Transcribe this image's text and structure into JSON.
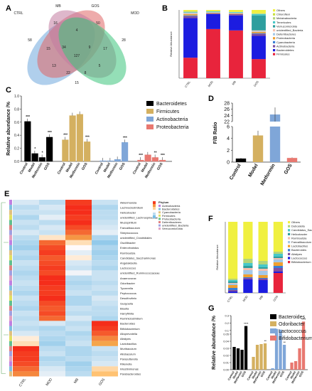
{
  "panels": {
    "A": "A",
    "B": "B",
    "C": "C",
    "D": "D",
    "E": "E",
    "F": "F",
    "G": "G"
  },
  "chart_data": [
    {
      "panel": "A",
      "type": "venn",
      "sets": [
        {
          "name": "CTRL",
          "color": "#6fa8dc"
        },
        {
          "name": "MB",
          "color": "#e06666"
        },
        {
          "name": "GOS",
          "color": "#c27ba0"
        },
        {
          "name": "MOD",
          "color": "#3cc47c"
        }
      ],
      "region_values": [
        "58",
        "16",
        "50",
        "28",
        "4",
        "15",
        "17",
        "34",
        "9",
        "127",
        "13",
        "5",
        "22",
        "8",
        "15"
      ]
    },
    {
      "panel": "B",
      "type": "bar",
      "stacked": true,
      "categories": [
        "CTRL",
        "MOD",
        "MB",
        "GOS"
      ],
      "ylabel": "Relative Abundance",
      "ylim": [
        0,
        1
      ],
      "series": [
        {
          "name": "Firmicutes",
          "color": "#e8243c",
          "values": [
            0.3,
            0.72,
            0.7,
            0.28
          ]
        },
        {
          "name": "Bacteroidetes",
          "color": "#1c1ce0",
          "values": [
            0.58,
            0.22,
            0.22,
            0.34
          ]
        },
        {
          "name": "Actinobacteria",
          "color": "#7f4fa0",
          "values": [
            0.03,
            0.01,
            0.02,
            0.03
          ]
        },
        {
          "name": "Cyanobacteria",
          "color": "#3a7fd6",
          "values": [
            0.01,
            0.0,
            0.0,
            0.01
          ]
        },
        {
          "name": "Proteobacteria",
          "color": "#f0a030",
          "values": [
            0.02,
            0.01,
            0.01,
            0.02
          ]
        },
        {
          "name": "Deferribacteres",
          "color": "#a4c8e8",
          "values": [
            0.01,
            0.01,
            0.01,
            0.01
          ]
        },
        {
          "name": "unidentified_Bacteria",
          "color": "#f6c0b0",
          "values": [
            0.01,
            0.0,
            0.0,
            0.01
          ]
        },
        {
          "name": "Verrucomicrobia",
          "color": "#2e9e9e",
          "values": [
            0.0,
            0.0,
            0.0,
            0.22
          ]
        },
        {
          "name": "Tenericutes",
          "color": "#48c8c8",
          "values": [
            0.01,
            0.01,
            0.01,
            0.02
          ]
        },
        {
          "name": "Melainabacteria",
          "color": "#b4d47a",
          "values": [
            0.01,
            0.0,
            0.0,
            0.01
          ]
        },
        {
          "name": "Chloroflexi",
          "color": "#c8e040",
          "values": [
            0.0,
            0.0,
            0.0,
            0.0
          ]
        },
        {
          "name": "Others",
          "color": "#f0f040",
          "values": [
            0.02,
            0.02,
            0.03,
            0.05
          ]
        }
      ]
    },
    {
      "panel": "C",
      "type": "bar",
      "ylabel": "Relative abundance /%",
      "ylim": [
        0,
        1
      ],
      "yticks": [
        "0.0",
        "0.2",
        "0.4",
        "0.6",
        "0.8",
        "1.0"
      ],
      "groups": [
        "Control",
        "Model",
        "Metformin",
        "GOS"
      ],
      "series": [
        {
          "name": "Bacteroidetes",
          "color": "#000000",
          "values": [
            0.61,
            0.12,
            0.06,
            0.37
          ],
          "sig": [
            "***",
            "*",
            "*",
            "***"
          ]
        },
        {
          "name": "Firmicutes",
          "color": "#d4b060",
          "values": [
            0.33,
            0.7,
            0.72,
            0.3
          ],
          "sig": [
            "***",
            "",
            "",
            "***"
          ]
        },
        {
          "name": "Actinobacteria",
          "color": "#7fa6d8",
          "values": [
            0.01,
            0.01,
            0.03,
            0.29
          ],
          "sig": [
            "",
            "",
            "",
            "***"
          ]
        },
        {
          "name": "Proteobacteria",
          "color": "#e87870",
          "values": [
            0.02,
            0.1,
            0.06,
            0.02
          ],
          "sig": [
            "***",
            "",
            "**",
            "***"
          ]
        }
      ]
    },
    {
      "panel": "D",
      "type": "bar",
      "ylabel": "F/B Ratio",
      "yticks_lower": [
        "0",
        "2",
        "4",
        "6"
      ],
      "yticks_upper": [
        "22",
        "24",
        "26",
        "28"
      ],
      "categories": [
        "Control",
        "Model",
        "Metformin",
        "GOS"
      ],
      "values": [
        0.6,
        4.5,
        24.3,
        0.7
      ],
      "errors": [
        0.1,
        0.8,
        2.3,
        0.1
      ],
      "colors": [
        "#000000",
        "#d4b060",
        "#7fa6d8",
        "#e87870"
      ]
    },
    {
      "panel": "E",
      "type": "heatmap",
      "columns": [
        "CTRL",
        "MOD",
        "MB",
        "GOS"
      ],
      "rows": [
        "Akkermansia",
        "Lachnoclostridium",
        "Helicobacter",
        "unidentified_Lachnospiraceae",
        "Mucispirillum",
        "Faecalibaculum",
        "Streptococcus",
        "unidentified_Clostridiales",
        "Oscillibacter",
        "Enterorhabdus",
        "Romboutsia",
        "Candidatus_Saccharimonas",
        "Angelakisella",
        "Lactococcus",
        "unidentified_Ruminococcaceae",
        "Anaerovorax",
        "Odoribacter",
        "Tyzzerella",
        "Peptococcus",
        "Desulfovibrio",
        "Guayoella",
        "Blautia",
        "Harryflintia",
        "Ruminiclostridium",
        "Bacteroides",
        "Bifidobacterium",
        "Alloprevotella",
        "Alistipes",
        "Lactobacillus",
        "Muribaculum",
        "Allobaculum",
        "Parasutterella",
        "Rikenella",
        "Intestinimonas",
        "Parabacteroides"
      ],
      "values": [
        [
          -0.3,
          -0.5,
          1.8,
          -0.4
        ],
        [
          -0.5,
          -0.3,
          1.9,
          -0.6
        ],
        [
          -0.4,
          -0.4,
          1.9,
          -0.5
        ],
        [
          -0.6,
          -0.2,
          1.8,
          -0.5
        ],
        [
          -0.4,
          -0.5,
          1.9,
          -0.4
        ],
        [
          -0.5,
          -0.3,
          1.7,
          -0.3
        ],
        [
          -0.3,
          -0.4,
          1.5,
          -0.2
        ],
        [
          -0.5,
          0.3,
          1.2,
          -0.6
        ],
        [
          -0.6,
          1.5,
          0.4,
          -0.8
        ],
        [
          -0.7,
          1.7,
          0.0,
          -0.6
        ],
        [
          -0.5,
          1.8,
          -0.2,
          -0.7
        ],
        [
          -0.6,
          1.6,
          0.2,
          -0.6
        ],
        [
          -0.4,
          1.7,
          -0.3,
          -0.5
        ],
        [
          -0.5,
          1.8,
          -0.4,
          -0.6
        ],
        [
          -0.6,
          1.7,
          -0.1,
          -0.4
        ],
        [
          -0.5,
          1.9,
          -0.5,
          -0.4
        ],
        [
          -0.4,
          1.9,
          -0.6,
          -0.5
        ],
        [
          -0.5,
          1.8,
          -0.5,
          -0.4
        ],
        [
          -0.6,
          1.8,
          -0.4,
          -0.5
        ],
        [
          -0.4,
          1.9,
          -0.6,
          -0.3
        ],
        [
          -0.5,
          1.7,
          -0.6,
          -0.4
        ],
        [
          -0.6,
          1.6,
          -0.4,
          -0.5
        ],
        [
          -0.4,
          1.7,
          -0.5,
          -0.5
        ],
        [
          -0.5,
          1.5,
          -0.3,
          -0.6
        ],
        [
          -0.4,
          -0.3,
          -0.5,
          1.9
        ],
        [
          -0.5,
          -0.6,
          -0.4,
          1.8
        ],
        [
          -0.3,
          -0.5,
          -0.6,
          1.6
        ],
        [
          0.2,
          -0.6,
          -0.5,
          1.3
        ],
        [
          0.4,
          -0.7,
          -0.4,
          1.1
        ],
        [
          1.9,
          -0.5,
          -0.6,
          -0.4
        ],
        [
          1.8,
          -0.4,
          -0.6,
          -0.5
        ],
        [
          1.8,
          -0.6,
          -0.5,
          -0.4
        ],
        [
          1.7,
          -0.5,
          -0.7,
          -0.3
        ],
        [
          1.5,
          -0.3,
          -0.6,
          0.5
        ],
        [
          1.3,
          -0.2,
          -0.5,
          0.8
        ]
      ],
      "legend_title": "Phylum",
      "legend": [
        {
          "name": "Actinobacteria",
          "color": "#c080e0"
        },
        {
          "name": "Bacteroidetes",
          "color": "#80c0e0"
        },
        {
          "name": "Cyanobacteria",
          "color": "#e0c080"
        },
        {
          "name": "Firmicutes",
          "color": "#e0e060"
        },
        {
          "name": "Proteobacteria",
          "color": "#60c090"
        },
        {
          "name": "Deferribacteres",
          "color": "#e08080"
        },
        {
          "name": "unidentified_Bacteria",
          "color": "#a0a0e0"
        },
        {
          "name": "Verrucomicrobia",
          "color": "#e0a0c0"
        }
      ]
    },
    {
      "panel": "F",
      "type": "bar",
      "stacked": true,
      "categories": [
        "CTRL",
        "MOD",
        "MB",
        "GOS"
      ],
      "ylabel": "Relative Abundance",
      "ylim": [
        0,
        1
      ],
      "series": [
        {
          "name": "Bifidobacterium",
          "color": "#e8243c",
          "values": [
            0.0,
            0.0,
            0.0,
            0.28
          ]
        },
        {
          "name": "Lactococcus",
          "color": "#1c1ce0",
          "values": [
            0.02,
            0.19,
            0.18,
            0.02
          ]
        },
        {
          "name": "Alistipes",
          "color": "#7f4fa0",
          "values": [
            0.02,
            0.02,
            0.02,
            0.05
          ]
        },
        {
          "name": "Bacteroides",
          "color": "#3a7fd6",
          "values": [
            0.03,
            0.01,
            0.01,
            0.03
          ]
        },
        {
          "name": "Lactobacillus",
          "color": "#f0a030",
          "values": [
            0.04,
            0.04,
            0.04,
            0.05
          ]
        },
        {
          "name": "Faecalibaculum",
          "color": "#a4c8e8",
          "values": [
            0.02,
            0.06,
            0.06,
            0.04
          ]
        },
        {
          "name": "Romboutsia",
          "color": "#f6c0b0",
          "values": [
            0.01,
            0.03,
            0.03,
            0.02
          ]
        },
        {
          "name": "Helicobacter",
          "color": "#2e9e9e",
          "values": [
            0.02,
            0.03,
            0.02,
            0.02
          ]
        },
        {
          "name": "Candidatus_Saccharimonas",
          "color": "#48c8c8",
          "values": [
            0.02,
            0.04,
            0.04,
            0.04
          ]
        },
        {
          "name": "Dubosiella",
          "color": "#b4d47a",
          "values": [
            0.02,
            0.06,
            0.05,
            0.03
          ]
        },
        {
          "name": "Others",
          "color": "#f0f040",
          "values": [
            0.8,
            0.52,
            0.55,
            0.42
          ]
        }
      ]
    },
    {
      "panel": "G",
      "type": "bar",
      "ylabel": "Relative abundance /%",
      "yticks": [
        "0.00",
        "0.01",
        "0.02",
        "0.03",
        "0.04",
        "0.05",
        "0.1",
        "0.2",
        "0.3"
      ],
      "groups": [
        "Control",
        "Model",
        "Metformin",
        "GOS"
      ],
      "series": [
        {
          "name": "Bacteroides",
          "color": "#000000",
          "values": [
            0.032,
            0.03,
            0.028,
            0.16
          ],
          "sig": [
            "",
            "",
            "",
            "****"
          ]
        },
        {
          "name": "Odoribacter",
          "color": "#d4b060",
          "values": [
            0.018,
            0.035,
            0.036,
            0.037
          ],
          "sig": [
            "",
            "",
            "",
            "**"
          ]
        },
        {
          "name": "Lactococcus",
          "color": "#7fa6d8",
          "values": [
            0.002,
            0.12,
            0.11,
            0.035
          ],
          "sig": [
            "",
            "",
            "",
            "**"
          ]
        },
        {
          "name": "Bifidobacterium",
          "color": "#e87870",
          "values": [
            0.01,
            0.012,
            0.03,
            0.22
          ],
          "sig": [
            "",
            "",
            "",
            "****"
          ]
        }
      ]
    }
  ]
}
